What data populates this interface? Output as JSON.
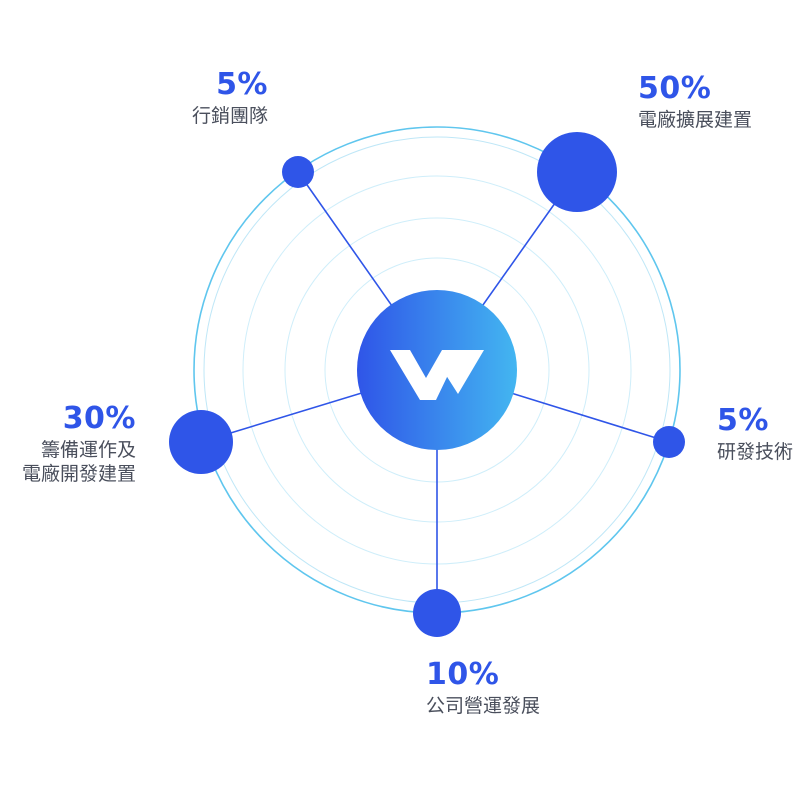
{
  "diagram": {
    "colors": {
      "accent": "#2f55e8",
      "ring": "#5fc6ee",
      "inner_ring": "#a9dff4",
      "hub_start": "#2f55e8",
      "hub_end": "#43b6f1",
      "text": "#4a4f5c"
    },
    "hub": {
      "icon": "w-logo-icon"
    },
    "segments": [
      {
        "percent": "5%",
        "value": 5,
        "label": "行銷團隊"
      },
      {
        "percent": "50%",
        "value": 50,
        "label": "電廠擴展建置"
      },
      {
        "percent": "5%",
        "value": 5,
        "label": "研發技術"
      },
      {
        "percent": "10%",
        "value": 10,
        "label": "公司營運發展"
      },
      {
        "percent": "30%",
        "value": 30,
        "label": "籌備運作及\n電廠開發建置"
      }
    ]
  }
}
